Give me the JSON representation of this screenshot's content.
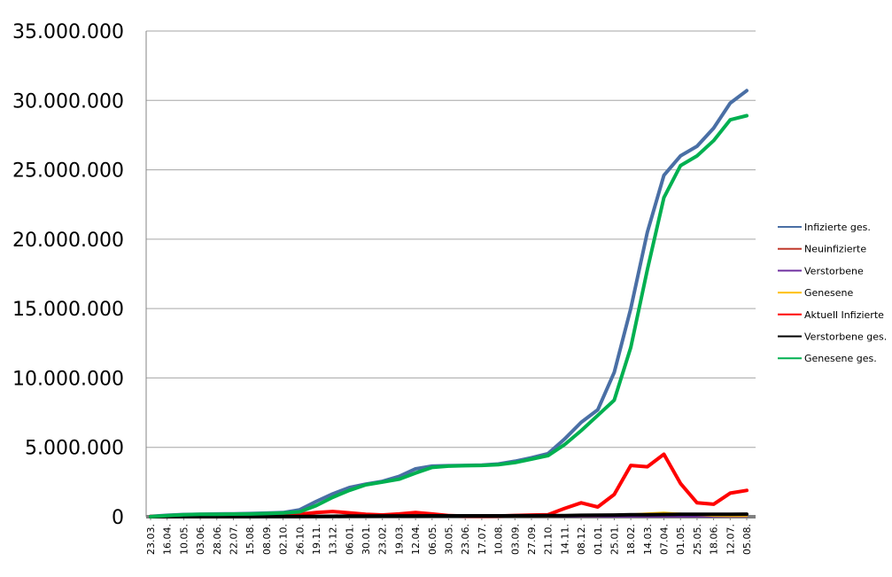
{
  "chart_data": {
    "type": "line",
    "title": "",
    "xlabel": "",
    "ylabel": "",
    "ylim": [
      0,
      35000000
    ],
    "y_ticks": [
      {
        "value": 0,
        "label": "0"
      },
      {
        "value": 5000000,
        "label": "5.000.000"
      },
      {
        "value": 10000000,
        "label": "10.000.000"
      },
      {
        "value": 15000000,
        "label": "15.000.000"
      },
      {
        "value": 20000000,
        "label": "20.000.000"
      },
      {
        "value": 25000000,
        "label": "25.000.000"
      },
      {
        "value": 30000000,
        "label": "30.000.000"
      },
      {
        "value": 35000000,
        "label": "35.000.000"
      }
    ],
    "categories": [
      "23.03.",
      "16.04.",
      "10.05.",
      "03.06.",
      "28.06.",
      "22.07.",
      "15.08.",
      "08.09.",
      "02.10.",
      "26.10.",
      "19.11.",
      "13.12.",
      "06.01.",
      "30.01.",
      "23.02.",
      "19.03.",
      "12.04.",
      "06.05.",
      "30.05.",
      "23.06.",
      "17.07.",
      "10.08.",
      "03.09.",
      "27.09.",
      "21.10.",
      "14.11.",
      "08.12.",
      "01.01.",
      "25.01.",
      "18.02.",
      "14.03.",
      "07.04.",
      "01.05.",
      "25.05.",
      "18.06.",
      "12.07.",
      "05.08."
    ],
    "grid": true,
    "legend_position": "right",
    "series": [
      {
        "name": "Infizierte ges.",
        "color": "#4a6fa5",
        "values": [
          25000,
          100000,
          160000,
          180000,
          200000,
          210000,
          230000,
          260000,
          300000,
          500000,
          1100000,
          1650000,
          2100000,
          2350000,
          2550000,
          2900000,
          3450000,
          3650000,
          3680000,
          3700000,
          3720000,
          3800000,
          4000000,
          4250000,
          4550000,
          5600000,
          6800000,
          7700000,
          10400000,
          15000000,
          20500000,
          24600000,
          26000000,
          26700000,
          28000000,
          29800000,
          30700000
        ],
        "width": 4
      },
      {
        "name": "Neuinfizierte",
        "color": "#c0392b",
        "values": [
          500,
          2000,
          1000,
          800,
          500,
          800,
          1500,
          2000,
          5000,
          12000,
          20000,
          22000,
          20000,
          15000,
          10000,
          12000,
          18000,
          13000,
          8000,
          5000,
          5000,
          7000,
          10000,
          12000,
          17000,
          40000,
          60000,
          45000,
          70000,
          100000,
          130000,
          150000,
          110000,
          60000,
          20000,
          40000,
          50000
        ],
        "width": 2
      },
      {
        "name": "Verstorbene",
        "color": "#7030a0",
        "values": [
          50,
          200,
          100,
          50,
          20,
          30,
          50,
          80,
          200,
          400,
          700,
          800,
          900,
          700,
          400,
          300,
          250,
          150,
          80,
          40,
          30,
          30,
          50,
          80,
          150,
          400,
          800,
          900,
          1000,
          1200,
          1400,
          1500,
          1200,
          800,
          400,
          300,
          300
        ],
        "width": 2
      },
      {
        "name": "Genesene",
        "color": "#ffc000",
        "values": [
          200,
          1500,
          3000,
          2000,
          1000,
          800,
          1000,
          1500,
          3000,
          8000,
          15000,
          20000,
          18000,
          15000,
          10000,
          10000,
          12000,
          10000,
          6000,
          4000,
          3000,
          5000,
          8000,
          10000,
          12000,
          30000,
          50000,
          55000,
          80000,
          180000,
          250000,
          300000,
          230000,
          120000,
          60000,
          40000,
          40000
        ],
        "width": 2
      },
      {
        "name": "Aktuell Infizierte",
        "color": "#ff0000",
        "values": [
          20000,
          40000,
          30000,
          20000,
          20000,
          30000,
          40000,
          50000,
          80000,
          180000,
          300000,
          380000,
          280000,
          170000,
          130000,
          200000,
          300000,
          200000,
          80000,
          50000,
          40000,
          50000,
          90000,
          120000,
          150000,
          600000,
          1000000,
          700000,
          1600000,
          3700000,
          3600000,
          4500000,
          2400000,
          1000000,
          900000,
          1700000,
          1900000
        ],
        "width": 4
      },
      {
        "name": "Verstorbene ges.",
        "color": "#000000",
        "values": [
          1000,
          5000,
          7000,
          8000,
          8500,
          9000,
          9500,
          10000,
          11000,
          15000,
          25000,
          35000,
          45000,
          52000,
          55000,
          57000,
          60000,
          63000,
          64000,
          65000,
          66000,
          67000,
          69000,
          71000,
          75000,
          85000,
          100000,
          110000,
          120000,
          140000,
          150000,
          160000,
          170000,
          175000,
          178000,
          180000,
          185000
        ],
        "width": 4
      },
      {
        "name": "Genesene ges.",
        "color": "#00b050",
        "values": [
          5000,
          80000,
          150000,
          170000,
          180000,
          190000,
          200000,
          230000,
          270000,
          350000,
          800000,
          1400000,
          1900000,
          2300000,
          2500000,
          2700000,
          3150000,
          3550000,
          3650000,
          3680000,
          3700000,
          3750000,
          3900000,
          4150000,
          4400000,
          5200000,
          6200000,
          7300000,
          8400000,
          12200000,
          17800000,
          23000000,
          25300000,
          26000000,
          27100000,
          28600000,
          28900000
        ],
        "width": 4
      }
    ]
  }
}
